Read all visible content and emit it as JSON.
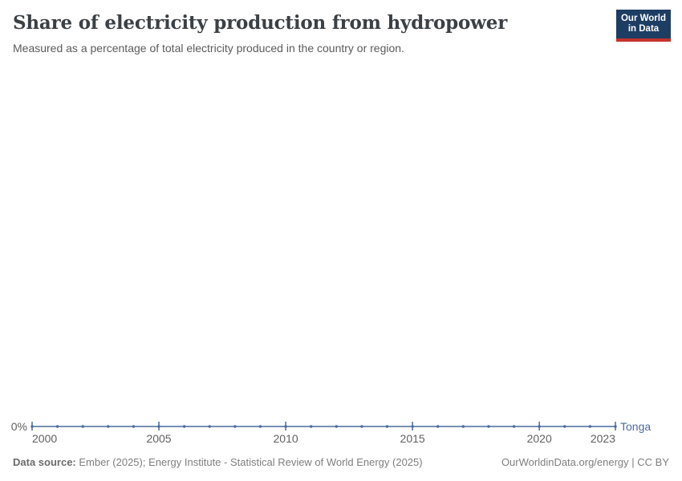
{
  "header": {
    "title": "Share of electricity production from hydropower",
    "subtitle": "Measured as a percentage of total electricity produced in the country or region."
  },
  "logo": {
    "line1": "Our World",
    "line2": "in Data",
    "bg_color": "#1d3d63",
    "accent_color": "#c5332c"
  },
  "chart_data": {
    "type": "line",
    "title": "Share of electricity production from hydropower",
    "subtitle": "Measured as a percentage of total electricity produced in the country or region.",
    "xlabel": "",
    "ylabel": "",
    "x": [
      2000,
      2001,
      2002,
      2003,
      2004,
      2005,
      2006,
      2007,
      2008,
      2009,
      2010,
      2011,
      2012,
      2013,
      2014,
      2015,
      2016,
      2017,
      2018,
      2019,
      2020,
      2021,
      2022,
      2023
    ],
    "series": [
      {
        "name": "Tonga",
        "color": "#4c6a9c",
        "values": [
          0,
          0,
          0,
          0,
          0,
          0,
          0,
          0,
          0,
          0,
          0,
          0,
          0,
          0,
          0,
          0,
          0,
          0,
          0,
          0,
          0,
          0,
          0,
          0
        ]
      }
    ],
    "x_ticks": [
      2000,
      2005,
      2010,
      2015,
      2020,
      2023
    ],
    "x_tick_labels": [
      "2000",
      "2005",
      "2010",
      "2015",
      "2020",
      "2023"
    ],
    "y_ticks": [
      {
        "value": 0,
        "label": "0%"
      }
    ],
    "xlim": [
      2000,
      2023
    ],
    "ylim": [
      0,
      100
    ],
    "grid": false,
    "legend_position": "line-end-label"
  },
  "footer": {
    "source_label": "Data source:",
    "source_text": "Ember (2025); Energy Institute - Statistical Review of World Energy (2025)",
    "credit": "OurWorldinData.org/energy | CC BY"
  },
  "colors": {
    "line": "#4c6a9c",
    "axis_text": "#616161",
    "title_text": "#3b4045",
    "subtitle_text": "#5b5b5b",
    "footer_text": "#7e7e7e"
  }
}
